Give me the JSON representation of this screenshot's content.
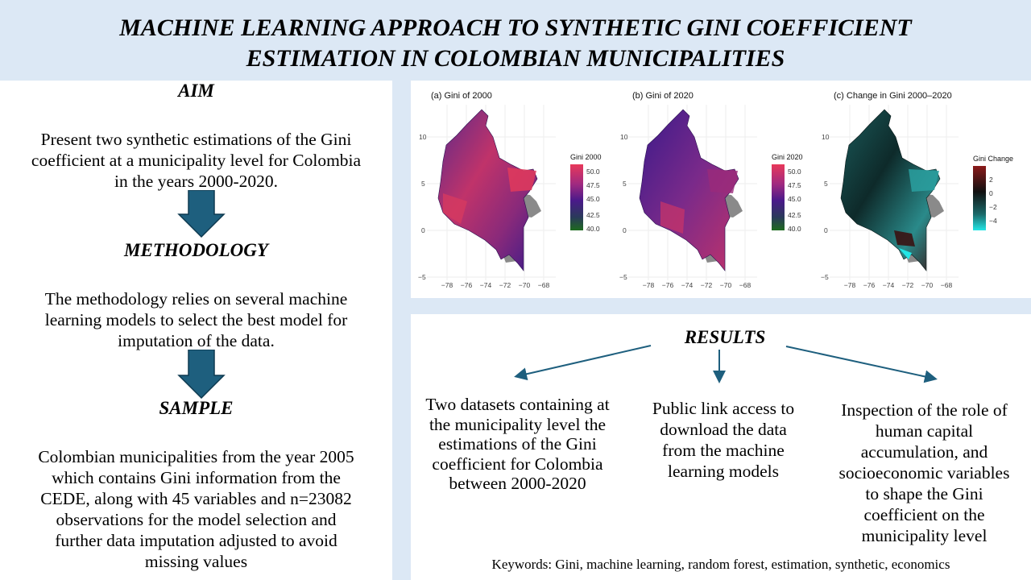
{
  "header": {
    "title_line1": "MACHINE LEARNING APPROACH TO SYNTHETIC GINI COEFFICIENT",
    "title_line2": "ESTIMATION IN COLOMBIAN MUNICIPALITIES"
  },
  "left": {
    "aim_heading": "AIM",
    "aim_lines": [
      "Present two synthetic estimations of the Gini",
      "coefficient at a municipality level for Colombia",
      "in the years 2000-2020."
    ],
    "methodology_heading": "METHODOLOGY",
    "methodology_lines": [
      "The methodology relies on several machine",
      "learning models to select the best model for",
      "imputation of the data."
    ],
    "sample_heading": "SAMPLE",
    "sample_lines": [
      "Colombian municipalities from the year 2005",
      "which contains Gini information from the",
      "CEDE, along with 45 variables and n=23082",
      "observations for the model selection and",
      "further data imputation adjusted to avoid",
      "missing values"
    ]
  },
  "maps": {
    "panels": [
      {
        "title": "(a) Gini of 2000",
        "legend_title": "Gini 2000",
        "legend_ticks": [
          "50.0",
          "47.5",
          "45.0",
          "42.5",
          "40.0"
        ]
      },
      {
        "title": "(b) Gini of 2020",
        "legend_title": "Gini 2020",
        "legend_ticks": [
          "50.0",
          "47.5",
          "45.0",
          "42.5",
          "40.0"
        ]
      },
      {
        "title": "(c) Change in Gini 2000–2020",
        "legend_title": "Gini Change",
        "legend_ticks": [
          "2",
          "0",
          "−2",
          "−4"
        ]
      }
    ],
    "y_ticks": [
      "10",
      "5",
      "0",
      "−5"
    ],
    "x_ticks": [
      "−78",
      "−76",
      "−74",
      "−72",
      "−70",
      "−68"
    ],
    "colors": {
      "gini_high": "#e8395a",
      "gini_mid": "#4a1a8a",
      "gini_low": "#1e6b1e",
      "change_high": "#8b1a1a",
      "change_mid": "#111111",
      "change_low": "#22e6e6"
    }
  },
  "results": {
    "heading": "RESULTS",
    "items": [
      {
        "lines": [
          "Two datasets containing at",
          "the municipality level the",
          "estimations of the Gini",
          "coefficient for Colombia",
          "between 2000-2020"
        ]
      },
      {
        "lines": [
          "Public link access to",
          "download the data",
          "from the machine",
          "learning models"
        ]
      },
      {
        "lines": [
          "Inspection of the role of",
          "human capital",
          "accumulation, and",
          "socioeconomic variables",
          "to shape the Gini",
          "coefficient on the",
          "municipality level"
        ]
      }
    ],
    "keywords": "Keywords: Gini, machine learning, random forest, estimation, synthetic, economics"
  }
}
